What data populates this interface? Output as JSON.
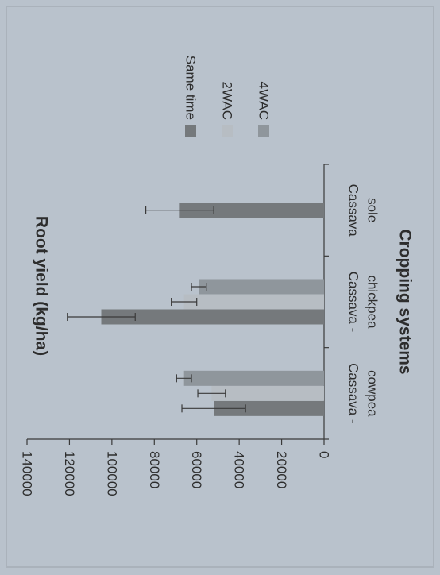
{
  "chart_data": {
    "type": "bar",
    "orientation": "rotated-90",
    "title": "",
    "xlabel": "Cropping systems",
    "ylabel": "Root yield (kg/ha)",
    "ylim": [
      0,
      140000
    ],
    "y_ticks": [
      "0",
      "20000",
      "40000",
      "60000",
      "80000",
      "100000",
      "120000",
      "140000"
    ],
    "grid": false,
    "legend_position": "right",
    "categories": [
      [
        "Cassava -",
        "cowpea"
      ],
      [
        "Cassava -",
        "chickpea"
      ],
      [
        "Cassava",
        "sole"
      ]
    ],
    "series": [
      {
        "name": "Same time",
        "color": "#75797c",
        "values": [
          52000,
          105000,
          68000
        ],
        "errors": [
          15000,
          16000,
          16000
        ]
      },
      {
        "name": "2WAC",
        "color": "#b7bdc3",
        "values": [
          53000,
          66000,
          null
        ],
        "errors": [
          6500,
          6000,
          null
        ]
      },
      {
        "name": "4WAC",
        "color": "#8f969c",
        "values": [
          66000,
          59000,
          null
        ],
        "errors": [
          3500,
          3500,
          null
        ]
      }
    ]
  }
}
